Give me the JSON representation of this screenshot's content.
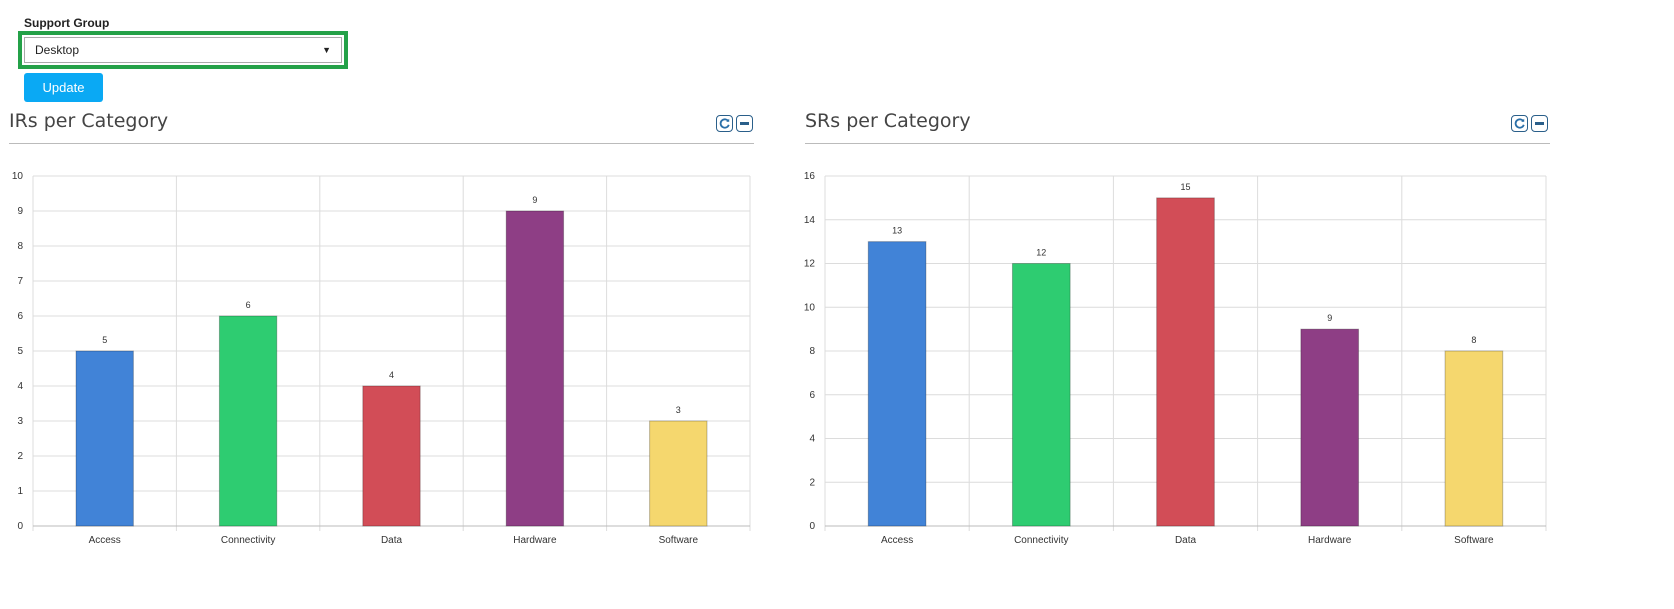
{
  "support_group": {
    "label": "Support Group",
    "selected": "Desktop",
    "update_label": "Update",
    "highlight_color": "#24a148",
    "update_color": "#0aa9f4"
  },
  "panels": [
    {
      "title": "IRs per Category",
      "refresh_icon": "refresh-icon",
      "collapse_icon": "minus-icon",
      "chart_data": {
        "type": "bar",
        "title": "",
        "xlabel": "",
        "ylabel": "",
        "categories": [
          "Access",
          "Connectivity",
          "Data",
          "Hardware",
          "Software"
        ],
        "values": [
          5,
          6,
          4,
          9,
          3
        ],
        "colors": [
          "#4183d7",
          "#2ecc71",
          "#d24d57",
          "#8e3e85",
          "#f5d76e"
        ],
        "ylim": [
          0,
          10
        ],
        "yticks": [
          "0",
          "1",
          "2",
          "3",
          "4",
          "5",
          "6",
          "7",
          "8",
          "9",
          "10"
        ],
        "grid": true,
        "data_labels": true,
        "legend": "none"
      }
    },
    {
      "title": "SRs per Category",
      "refresh_icon": "refresh-icon",
      "collapse_icon": "minus-icon",
      "chart_data": {
        "type": "bar",
        "title": "",
        "xlabel": "",
        "ylabel": "",
        "categories": [
          "Access",
          "Connectivity",
          "Data",
          "Hardware",
          "Software"
        ],
        "values": [
          13,
          12,
          15,
          9,
          8
        ],
        "colors": [
          "#4183d7",
          "#2ecc71",
          "#d24d57",
          "#8e3e85",
          "#f5d76e"
        ],
        "ylim": [
          0,
          16
        ],
        "yticks": [
          "0",
          "2",
          "4",
          "6",
          "8",
          "10",
          "12",
          "14",
          "16"
        ],
        "grid": true,
        "data_labels": true,
        "legend": "none"
      }
    }
  ]
}
